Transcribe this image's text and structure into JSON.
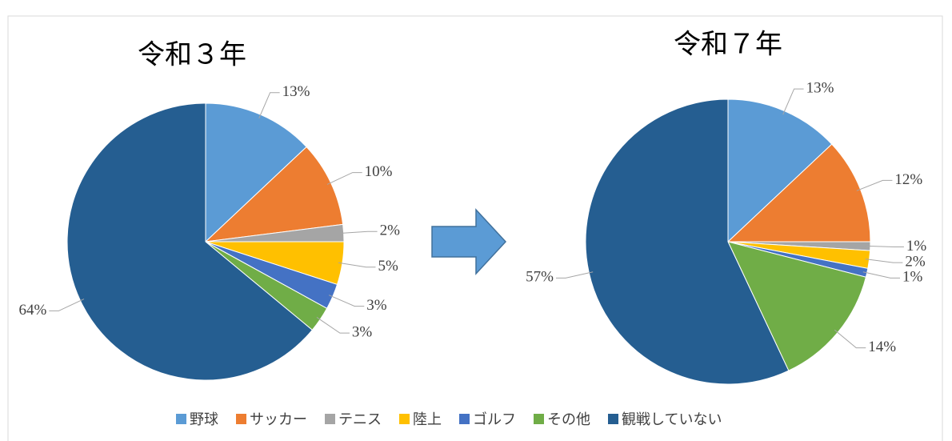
{
  "chart_data": [
    {
      "type": "pie",
      "title": "令和３年",
      "categories": [
        "野球",
        "サッカー",
        "テニス",
        "陸上",
        "ゴルフ",
        "その他",
        "観戦していない"
      ],
      "colors": [
        "#5b9bd5",
        "#ed7d31",
        "#a5a5a5",
        "#ffc000",
        "#4472c4",
        "#70ad47",
        "#255e91"
      ],
      "values": [
        13,
        10,
        2,
        5,
        3,
        3,
        64
      ],
      "value_labels": [
        "13%",
        "10%",
        "2%",
        "5%",
        "3%",
        "3%",
        "64%"
      ]
    },
    {
      "type": "pie",
      "title": "令和７年",
      "values": [
        13,
        12,
        1,
        2,
        1,
        14,
        57
      ],
      "value_labels": [
        "13%",
        "12%",
        "1%",
        "2%",
        "1%",
        "14%",
        "57%"
      ]
    }
  ]
}
